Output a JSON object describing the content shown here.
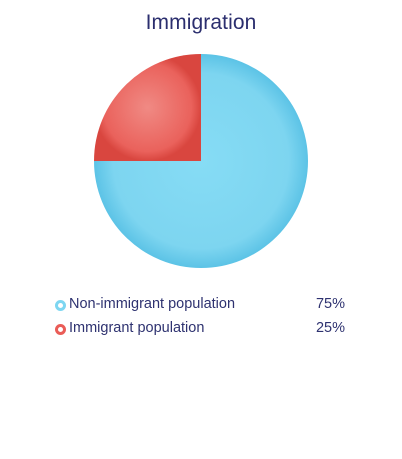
{
  "chart_data": {
    "type": "pie",
    "title": "Immigration",
    "slices": [
      {
        "label": "Non-immigrant population",
        "value": 75,
        "value_label": "75%",
        "color": "#7dd6f1"
      },
      {
        "label": "Immigrant population",
        "value": 25,
        "value_label": "25%",
        "color": "#ea5c57"
      }
    ],
    "legend_position": "bottom"
  }
}
